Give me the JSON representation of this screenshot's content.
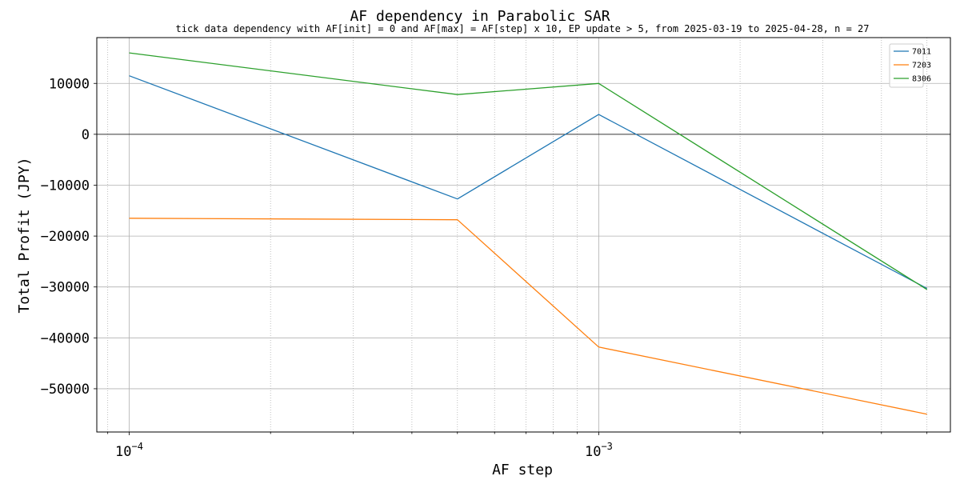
{
  "chart_data": {
    "type": "line",
    "title": "AF dependency in Parabolic SAR",
    "subtitle": "tick data dependency with AF[init] = 0 and AF[max] = AF[step] x 10, EP update  > 5, from 2025-03-19 to 2025-04-28, n = 27",
    "xlabel": "AF step",
    "ylabel": "Total Profit (JPY)",
    "xscale": "log",
    "xlim": [
      8.53e-05,
      0.00561
    ],
    "ylim": [
      -58500,
      19000
    ],
    "x": [
      0.0001,
      0.0005,
      0.001,
      0.005
    ],
    "series": [
      {
        "name": "7011",
        "color": "#1f77b4",
        "values": [
          11500,
          -12700,
          3900,
          -30300
        ]
      },
      {
        "name": "7203",
        "color": "#ff7f0e",
        "values": [
          -16500,
          -16800,
          -41800,
          -55000
        ]
      },
      {
        "name": "8306",
        "color": "#2ca02c",
        "values": [
          16000,
          7800,
          10000,
          -30500
        ]
      }
    ],
    "y_ticks": [
      {
        "value": 10000,
        "label": "10000"
      },
      {
        "value": 0,
        "label": "0"
      },
      {
        "value": -10000,
        "label": "−10000"
      },
      {
        "value": -20000,
        "label": "−20000"
      },
      {
        "value": -30000,
        "label": "−30000"
      },
      {
        "value": -40000,
        "label": "−40000"
      },
      {
        "value": -50000,
        "label": "−50000"
      }
    ],
    "x_major_ticks": [
      {
        "value": 0.0001,
        "base": "10",
        "exponent": "−4"
      },
      {
        "value": 0.001,
        "base": "10",
        "exponent": "−3"
      }
    ],
    "x_minor_ticks": [
      9e-05,
      0.0002,
      0.0003,
      0.0004,
      0.0005,
      0.0006,
      0.0007,
      0.0008,
      0.0009,
      0.002,
      0.003,
      0.004,
      0.005
    ],
    "grid": true,
    "zero_line": true,
    "legend_position": "top-right"
  }
}
